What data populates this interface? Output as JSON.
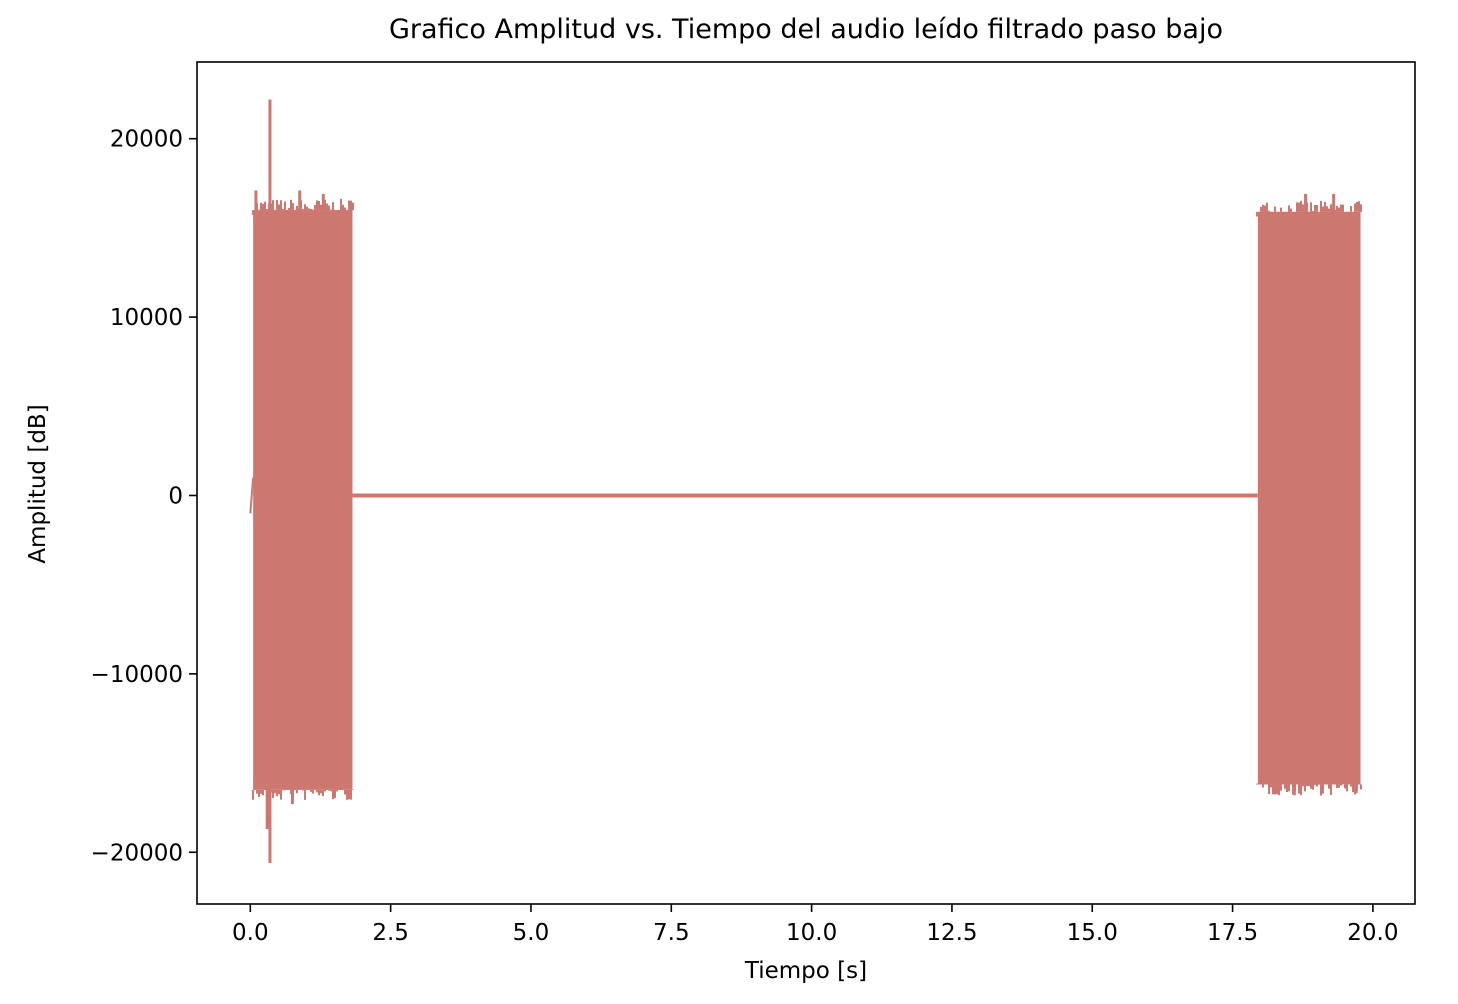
{
  "chart_data": {
    "type": "line",
    "title": "Grafico Amplitud vs. Tiempo del audio leído filtrado paso bajo",
    "xlabel": "Tiempo [s]",
    "ylabel": "Amplitud [dB]",
    "xlim": [
      -0.95,
      20.75
    ],
    "ylim": [
      -22900,
      24300
    ],
    "xticks": [
      0.0,
      2.5,
      5.0,
      7.5,
      10.0,
      12.5,
      15.0,
      17.5,
      20.0
    ],
    "xtick_labels": [
      "0.0",
      "2.5",
      "5.0",
      "7.5",
      "10.0",
      "12.5",
      "15.0",
      "17.5",
      "20.0"
    ],
    "yticks": [
      20000,
      10000,
      0,
      -10000,
      -20000
    ],
    "ytick_labels": [
      "20000",
      "10000",
      "0",
      "−10000",
      "−20000"
    ],
    "grid": false,
    "legend": "none",
    "line_color": "#cc7871",
    "series": [
      {
        "segments": [
          {
            "t_start": 0.0,
            "t_end": 0.05,
            "amplitude_min": -1000,
            "amplitude_max": 1000,
            "kind": "onset"
          },
          {
            "t_start": 0.05,
            "t_end": 1.82,
            "amplitude_min": -16500,
            "amplitude_max": 16000,
            "kind": "burst"
          },
          {
            "t_start": 1.82,
            "t_end": 17.95,
            "amplitude_min": -100,
            "amplitude_max": 100,
            "kind": "silence"
          },
          {
            "t_start": 17.95,
            "t_end": 19.78,
            "amplitude_min": -16200,
            "amplitude_max": 15900,
            "kind": "burst"
          }
        ],
        "peaks": [
          {
            "t": 0.1,
            "y": 17100
          },
          {
            "t": 0.1,
            "y": -16500
          },
          {
            "t": 0.35,
            "y": 22200
          },
          {
            "t": 0.35,
            "y": -20600
          },
          {
            "t": 0.3,
            "y": -18700
          },
          {
            "t": 0.75,
            "y": -17300
          },
          {
            "t": 0.88,
            "y": 17100
          },
          {
            "t": 1.3,
            "y": 16900
          },
          {
            "t": 18.8,
            "y": 16900
          },
          {
            "t": 19.3,
            "y": 16900
          },
          {
            "t": 18.6,
            "y": -16800
          },
          {
            "t": 19.7,
            "y": -16700
          }
        ]
      }
    ]
  }
}
